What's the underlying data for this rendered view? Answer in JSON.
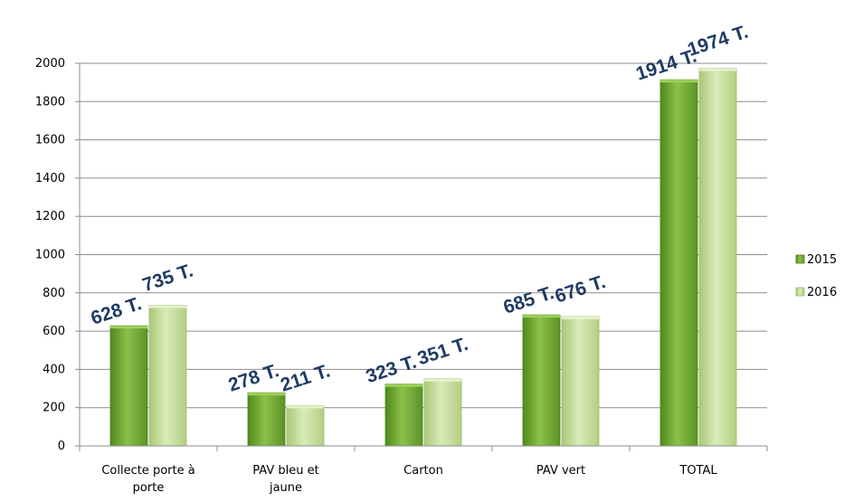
{
  "chart_data": {
    "type": "bar",
    "categories": [
      [
        "Collecte porte à",
        "porte"
      ],
      [
        "PAV bleu et",
        "jaune"
      ],
      [
        "Carton"
      ],
      [
        "PAV vert"
      ],
      [
        "TOTAL"
      ]
    ],
    "series": [
      {
        "name": "2015",
        "values": [
          628,
          278,
          323,
          685,
          1914
        ],
        "labels": [
          "628 T.",
          "278 T.",
          "323 T.",
          "685 T.",
          "1914 T."
        ],
        "color": "#6aa32e"
      },
      {
        "name": "2016",
        "values": [
          735,
          211,
          351,
          676,
          1974
        ],
        "labels": [
          "735 T.",
          "211 T.",
          "351 T.",
          "676 T.",
          "1974 T."
        ],
        "color": "#bcd88e"
      }
    ],
    "ylim": [
      0,
      2000
    ],
    "yticks": [
      0,
      200,
      400,
      600,
      800,
      1000,
      1200,
      1400,
      1600,
      1800,
      2000
    ],
    "grid": true,
    "legend": "right"
  }
}
